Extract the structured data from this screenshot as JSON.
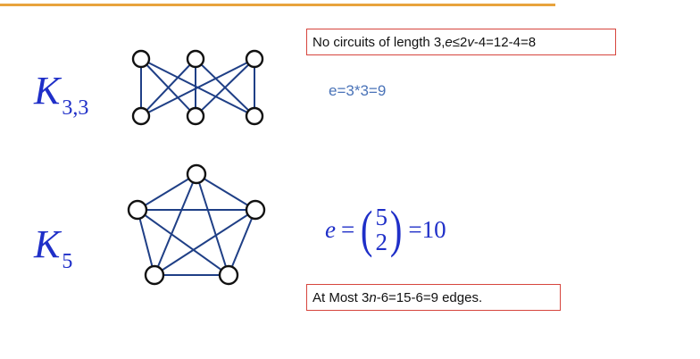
{
  "k33": {
    "label_main": "K",
    "label_sub": "3,3",
    "note_prefix": "No circuits of length 3, ",
    "note_e": "e",
    "note_le": "≤2",
    "note_v": "v",
    "note_suffix": "-4=12-4=8",
    "edge_count": "e=3*3=9"
  },
  "k5": {
    "label_main": "K",
    "label_sub": "5",
    "formula_var": "e",
    "formula_eq": "=",
    "binom_top": "5",
    "binom_bottom": "2",
    "formula_result": "=10",
    "note_prefix": "At Most 3",
    "note_n": "n",
    "note_suffix": "-6=15-6=9 edges."
  },
  "colors": {
    "accent_rule": "#e8a33d",
    "label_blue": "#1f2fc8",
    "edge_blue": "#1f3f86",
    "note_border": "#d6453d",
    "light_blue_text": "#4a73b8"
  }
}
